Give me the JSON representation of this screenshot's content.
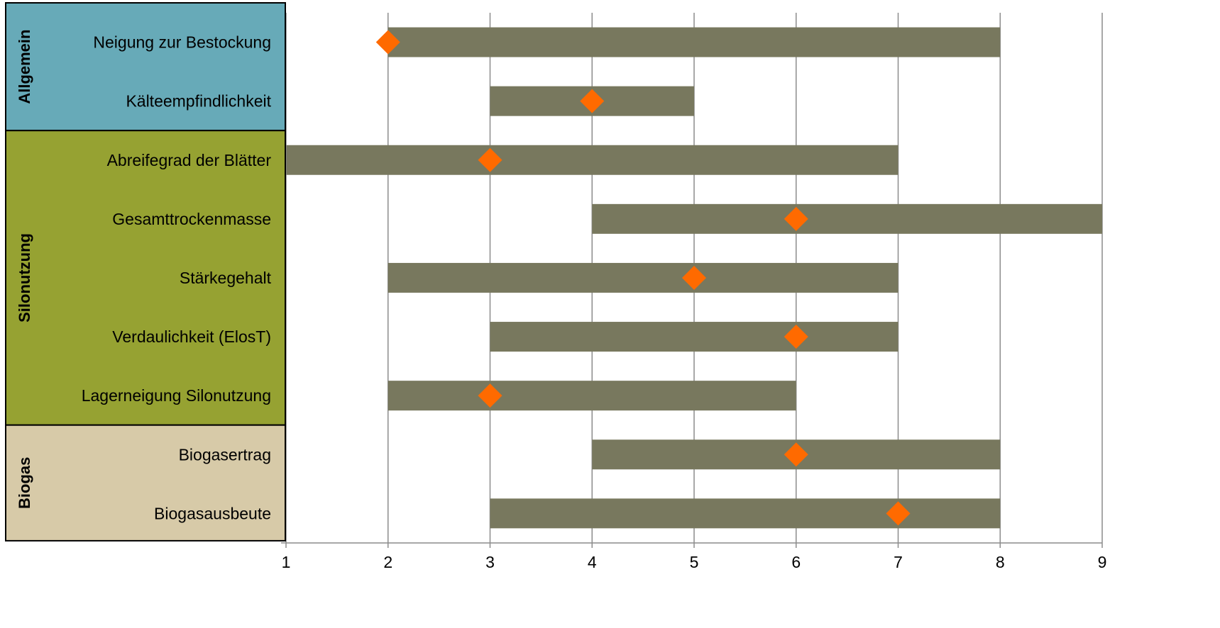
{
  "chart_data": {
    "type": "bar",
    "orientation": "horizontal",
    "subtype": "floating-range-with-marker",
    "xlim": [
      1,
      9
    ],
    "x_ticks": [
      1,
      2,
      3,
      4,
      5,
      6,
      7,
      8,
      9
    ],
    "grid": "vertical",
    "groups": [
      {
        "name": "Allgemein",
        "color": "#67aab8",
        "items": [
          {
            "label": "Neigung zur Bestockung",
            "min": 2,
            "max": 8,
            "marker": 2
          },
          {
            "label": "Kälteempfindlichkeit",
            "min": 3,
            "max": 5,
            "marker": 4
          }
        ]
      },
      {
        "name": "Silonutzung",
        "color": "#96a232",
        "items": [
          {
            "label": "Abreifegrad der Blätter",
            "min": 1,
            "max": 7,
            "marker": 3
          },
          {
            "label": "Gesamttrockenmasse",
            "min": 4,
            "max": 9,
            "marker": 6
          },
          {
            "label": "Stärkegehalt",
            "min": 2,
            "max": 7,
            "marker": 5
          },
          {
            "label": "Verdaulichkeit (ElosT)",
            "min": 3,
            "max": 7,
            "marker": 6
          },
          {
            "label": "Lagerneigung Silonutzung",
            "min": 2,
            "max": 6,
            "marker": 3
          }
        ]
      },
      {
        "name": "Biogas",
        "color": "#d7caa8",
        "items": [
          {
            "label": "Biogasertrag",
            "min": 4,
            "max": 8,
            "marker": 6
          },
          {
            "label": "Biogasausbeute",
            "min": 3,
            "max": 8,
            "marker": 7
          }
        ]
      }
    ],
    "bar_color": "#78785e",
    "marker_color": "#ff6a00"
  }
}
